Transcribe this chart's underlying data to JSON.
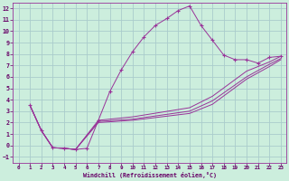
{
  "xlabel": "Windchill (Refroidissement éolien,°C)",
  "bg_color": "#cceedd",
  "grid_color": "#aacccc",
  "line_color": "#993399",
  "xlim": [
    -0.5,
    23.5
  ],
  "ylim": [
    -1.5,
    12.5
  ],
  "xticks": [
    0,
    1,
    2,
    3,
    4,
    5,
    6,
    7,
    8,
    9,
    10,
    11,
    12,
    13,
    14,
    15,
    16,
    17,
    18,
    19,
    20,
    21,
    22,
    23
  ],
  "yticks": [
    -1,
    0,
    1,
    2,
    3,
    4,
    5,
    6,
    7,
    8,
    9,
    10,
    11,
    12
  ],
  "main_x": [
    1,
    2,
    3,
    4,
    5,
    6,
    7,
    8,
    9,
    10,
    11,
    12,
    13,
    14,
    15,
    16,
    17,
    18,
    19,
    20,
    21,
    22,
    23
  ],
  "main_y": [
    3.5,
    1.3,
    -0.2,
    -0.25,
    -0.35,
    -0.25,
    2.2,
    4.7,
    6.6,
    8.2,
    9.5,
    10.5,
    11.1,
    11.8,
    12.2,
    10.5,
    9.2,
    7.9,
    7.5,
    7.5,
    7.2,
    7.7,
    7.8
  ],
  "line2_x": [
    1,
    2,
    3,
    4,
    5,
    7,
    10,
    15,
    17,
    20,
    22,
    23
  ],
  "line2_y": [
    3.5,
    1.3,
    -0.2,
    -0.25,
    -0.35,
    2.2,
    2.5,
    3.3,
    4.3,
    6.5,
    7.3,
    7.8
  ],
  "line3_x": [
    1,
    2,
    3,
    4,
    5,
    7,
    10,
    15,
    17,
    20,
    22,
    23
  ],
  "line3_y": [
    3.5,
    1.3,
    -0.2,
    -0.25,
    -0.35,
    2.1,
    2.3,
    3.0,
    3.9,
    6.0,
    7.1,
    7.6
  ],
  "line4_x": [
    1,
    2,
    3,
    4,
    5,
    7,
    10,
    15,
    17,
    20,
    22,
    23
  ],
  "line4_y": [
    3.5,
    1.3,
    -0.2,
    -0.25,
    -0.35,
    2.0,
    2.2,
    2.8,
    3.6,
    5.8,
    6.9,
    7.5
  ]
}
